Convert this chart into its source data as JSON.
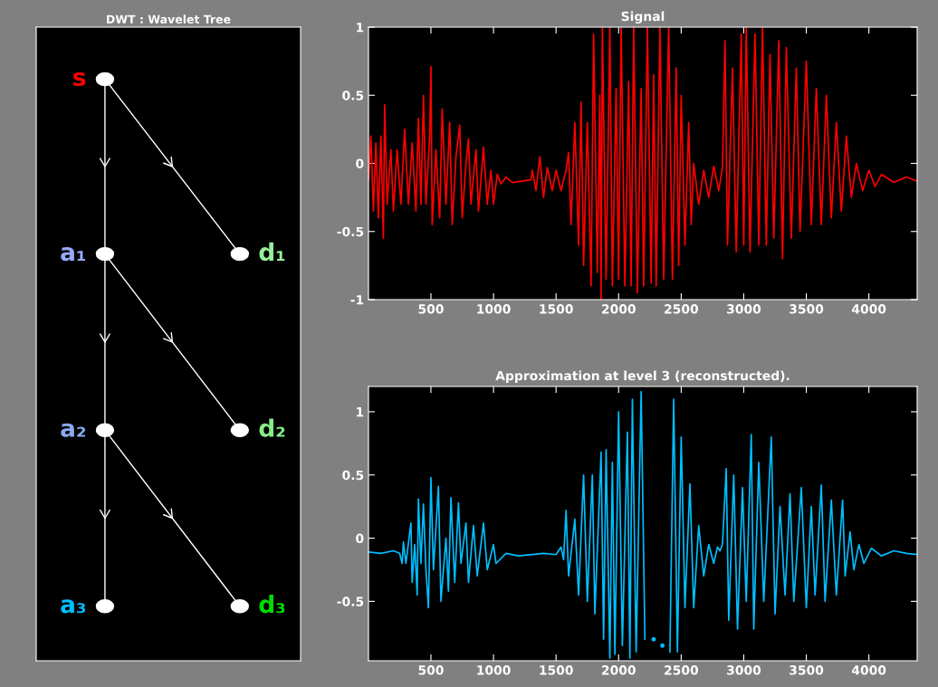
{
  "chart_data": [
    {
      "type": "other",
      "title": "DWT : Wavelet Tree",
      "annotations": [
        "s",
        "a₁",
        "d₁",
        "a₂",
        "d₂",
        "a₃",
        "d₃"
      ]
    },
    {
      "type": "line",
      "title": "Signal",
      "xlim": [
        1,
        4386
      ],
      "ylim": [
        -1,
        1
      ],
      "xticks": [
        500,
        1000,
        1500,
        2000,
        2500,
        3000,
        3500,
        4000
      ],
      "yticks": [
        -1,
        -0.5,
        0,
        0.5,
        1
      ],
      "grid": false,
      "series": [
        {
          "color": "#ff0000",
          "x": [
            1,
            20,
            40,
            60,
            80,
            100,
            120,
            130,
            150,
            180,
            200,
            230,
            260,
            290,
            320,
            350,
            380,
            400,
            420,
            440,
            460,
            490,
            500,
            510,
            540,
            570,
            590,
            620,
            650,
            670,
            700,
            730,
            750,
            780,
            800,
            820,
            860,
            880,
            920,
            950,
            980,
            1000,
            1030,
            1060,
            1100,
            1150,
            1300,
            1310,
            1340,
            1370,
            1400,
            1430,
            1470,
            1500,
            1540,
            1580,
            1600,
            1620,
            1650,
            1680,
            1700,
            1720,
            1750,
            1780,
            1800,
            1830,
            1850,
            1860,
            1870,
            1900,
            1930,
            1950,
            1980,
            2000,
            2020,
            2050,
            2080,
            2100,
            2120,
            2150,
            2180,
            2200,
            2230,
            2260,
            2280,
            2300,
            2330,
            2360,
            2400,
            2430,
            2460,
            2480,
            2500,
            2530,
            2560,
            2580,
            2600,
            2640,
            2680,
            2720,
            2760,
            2800,
            2830,
            2850,
            2870,
            2910,
            2940,
            2980,
            3000,
            3020,
            3050,
            3090,
            3120,
            3150,
            3180,
            3210,
            3240,
            3280,
            3310,
            3340,
            3380,
            3420,
            3450,
            3500,
            3540,
            3580,
            3620,
            3660,
            3700,
            3740,
            3780,
            3820,
            3860,
            3900,
            3950,
            4000,
            4050,
            4100,
            4200,
            4300,
            4386
          ],
          "values": [
            -0.12,
            0.2,
            -0.35,
            0.15,
            -0.4,
            0.2,
            -0.55,
            0.43,
            -0.3,
            0.1,
            -0.35,
            0.1,
            -0.3,
            0.25,
            -0.3,
            0.15,
            -0.35,
            0.33,
            -0.3,
            0.5,
            -0.3,
            0.2,
            0.71,
            -0.45,
            0.1,
            -0.4,
            0.4,
            -0.3,
            0.3,
            -0.45,
            0.05,
            0.28,
            -0.4,
            0.0,
            0.18,
            -0.3,
            0.1,
            -0.35,
            0.12,
            -0.3,
            -0.05,
            -0.3,
            -0.08,
            -0.15,
            -0.1,
            -0.14,
            -0.12,
            -0.05,
            -0.2,
            0.05,
            -0.25,
            -0.03,
            -0.2,
            -0.05,
            -0.2,
            -0.05,
            0.08,
            -0.45,
            0.3,
            -0.6,
            0.45,
            -0.75,
            0.3,
            -0.9,
            0.95,
            -0.8,
            0.5,
            -1.0,
            1.0,
            -0.85,
            1.0,
            -0.9,
            0.55,
            -0.85,
            1.0,
            -0.9,
            0.6,
            -0.9,
            1.0,
            -0.95,
            0.55,
            -0.9,
            1.0,
            -0.88,
            0.65,
            -0.9,
            1.0,
            -0.85,
            1.0,
            -0.85,
            0.7,
            -0.75,
            0.5,
            -0.6,
            0.3,
            -0.45,
            0.0,
            -0.3,
            -0.05,
            -0.25,
            -0.02,
            -0.2,
            -0.03,
            0.9,
            -0.6,
            0.7,
            -0.65,
            0.95,
            -0.6,
            1.0,
            -0.65,
            0.95,
            -0.6,
            1.0,
            -0.6,
            0.8,
            -0.55,
            0.9,
            -0.7,
            0.85,
            -0.55,
            0.7,
            -0.5,
            0.75,
            -0.45,
            0.55,
            -0.45,
            0.5,
            -0.4,
            0.3,
            -0.35,
            0.2,
            -0.25,
            0.0,
            -0.2,
            -0.05,
            -0.17,
            -0.08,
            -0.14,
            -0.1,
            -0.13
          ]
        }
      ]
    },
    {
      "type": "line",
      "title": "Approximation at level 3 (reconstructed).",
      "xlim": [
        1,
        4386
      ],
      "ylim": [
        -0.97,
        1.2
      ],
      "xticks": [
        500,
        1000,
        1500,
        2000,
        2500,
        3000,
        3500,
        4000
      ],
      "yticks": [
        -0.5,
        0,
        0.5,
        1
      ],
      "grid": false,
      "series": [
        {
          "color": "#00bfff",
          "x": [
            1,
            100,
            200,
            250,
            270,
            280,
            300,
            340,
            350,
            370,
            390,
            400,
            420,
            440,
            460,
            480,
            500,
            520,
            560,
            580,
            620,
            640,
            660,
            690,
            720,
            740,
            780,
            800,
            840,
            870,
            920,
            950,
            1000,
            1020,
            1100,
            1200,
            1400,
            1500,
            1540,
            1560,
            1580,
            1600,
            1650,
            1680,
            1720,
            1750,
            1790,
            1810,
            1860,
            1880,
            1900,
            1930,
            1950,
            1970,
            2000,
            2030,
            2070,
            2090,
            2110,
            2140,
            2180,
            2210,
            2250,
            2280,
            2320,
            2350,
            2380,
            2410,
            2440,
            2470,
            2500,
            2530,
            2570,
            2600,
            2640,
            2680,
            2720,
            2760,
            2790,
            2810,
            2830,
            2860,
            2880,
            2920,
            2950,
            2990,
            3020,
            3060,
            3080,
            3120,
            3160,
            3220,
            3250,
            3290,
            3330,
            3370,
            3400,
            3460,
            3500,
            3540,
            3570,
            3620,
            3650,
            3700,
            3740,
            3790,
            3810,
            3850,
            3880,
            3920,
            3960,
            4020,
            4100,
            4200,
            4300,
            4386
          ],
          "values": [
            -0.11,
            -0.12,
            -0.1,
            -0.12,
            -0.2,
            -0.03,
            -0.2,
            0.12,
            -0.35,
            -0.05,
            -0.45,
            0.31,
            -0.2,
            0.27,
            -0.25,
            -0.55,
            0.48,
            -0.25,
            0.41,
            -0.5,
            0.0,
            -0.42,
            0.32,
            -0.35,
            0.28,
            -0.2,
            0.12,
            -0.35,
            0.1,
            -0.3,
            0.12,
            -0.25,
            -0.05,
            -0.2,
            -0.12,
            -0.14,
            -0.12,
            -0.13,
            -0.07,
            -0.17,
            0.22,
            -0.3,
            0.15,
            -0.45,
            0.5,
            -0.5,
            0.5,
            -0.6,
            0.68,
            -0.8,
            0.7,
            -0.95,
            0.6,
            -0.92,
            1.0,
            -0.85,
            0.84,
            -0.95,
            1.1,
            -0.9,
            1.16,
            -0.8,
            null,
            -0.8,
            null,
            -0.85,
            null,
            -0.9,
            1.1,
            -0.9,
            0.8,
            -0.55,
            0.43,
            -0.55,
            0.1,
            -0.3,
            -0.05,
            -0.2,
            -0.07,
            -0.1,
            -0.05,
            0.55,
            -0.65,
            0.5,
            -0.72,
            0.4,
            -0.5,
            0.82,
            -0.72,
            0.6,
            -0.5,
            0.8,
            -0.6,
            0.25,
            -0.45,
            0.35,
            -0.5,
            0.4,
            -0.55,
            0.25,
            -0.45,
            0.42,
            -0.5,
            0.3,
            -0.45,
            0.3,
            -0.3,
            0.05,
            -0.25,
            -0.05,
            -0.2,
            -0.08,
            -0.14,
            -0.1,
            -0.12,
            -0.13
          ]
        }
      ]
    }
  ]
}
